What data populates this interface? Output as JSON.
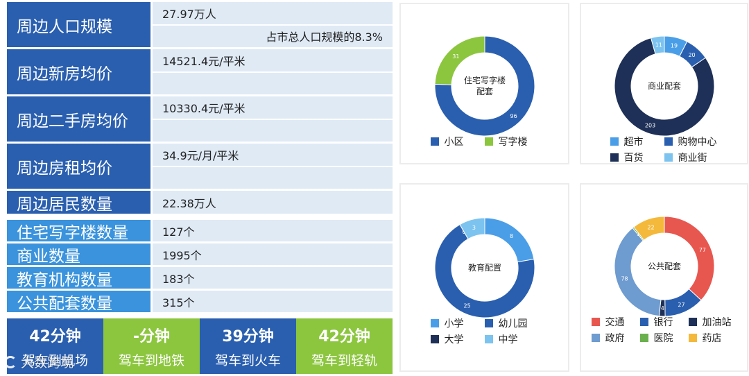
{
  "stats": {
    "population_label": "周边人口规模",
    "population_value": "27.97万人",
    "population_share": "占市总人口规模的8.3%",
    "new_price_label": "周边新房均价",
    "new_price_value": "14521.4元/平米",
    "second_price_label": "周边二手房均价",
    "second_price_value": "10330.4元/平米",
    "rent_label": "周边房租均价",
    "rent_value": "34.9元/月/平米",
    "residents_label": "周边居民数量",
    "residents_value": "22.38万人"
  },
  "counts": [
    {
      "label": "住宅写字楼数量",
      "value": "127个"
    },
    {
      "label": "商业数量",
      "value": "1995个"
    },
    {
      "label": "教育机构数量",
      "value": "183个"
    },
    {
      "label": "公共配套数量",
      "value": "315个"
    }
  ],
  "travel": [
    {
      "minutes": "42分钟",
      "desc": "驾车到机场",
      "color": "#2a5faf"
    },
    {
      "minutes": "-分钟",
      "desc": "驾车到地铁",
      "color": "#8cc63f"
    },
    {
      "minutes": "39分钟",
      "desc": "驾车到火车",
      "color": "#2a5faf"
    },
    {
      "minutes": "42分钟",
      "desc": "驾车到轻轨",
      "color": "#8cc63f"
    }
  ],
  "watermark": "大数跨境",
  "chart_data": [
    {
      "type": "pie",
      "title": "住宅写字楼配套",
      "categories": [
        "小区",
        "写字楼"
      ],
      "values": [
        96,
        31
      ],
      "colors": [
        "#2a5faf",
        "#8cc63f"
      ],
      "legend_columns": 2
    },
    {
      "type": "pie",
      "title": "商业配套",
      "categories": [
        "超市",
        "购物中心",
        "百货",
        "商业街"
      ],
      "values": [
        19,
        20,
        203,
        11
      ],
      "colors": [
        "#4a9ee8",
        "#2a5faf",
        "#1e3057",
        "#7cc3ef"
      ],
      "legend_columns": 2
    },
    {
      "type": "pie",
      "title": "教育配置",
      "categories": [
        "小学",
        "幼儿园",
        "大学",
        "中学"
      ],
      "values": [
        8,
        25,
        0,
        3
      ],
      "colors": [
        "#4a9ee8",
        "#2a5faf",
        "#1e3057",
        "#7cc3ef"
      ],
      "legend_columns": 2
    },
    {
      "type": "pie",
      "title": "公共配套",
      "categories": [
        "交通",
        "银行",
        "加油站",
        "政府",
        "医院",
        "药店"
      ],
      "values": [
        77,
        27,
        4,
        78,
        1,
        22
      ],
      "colors": [
        "#e8574f",
        "#2a5faf",
        "#1e3057",
        "#6e9bd0",
        "#6ab04c",
        "#f4b93b"
      ],
      "legend_columns": 3
    }
  ]
}
